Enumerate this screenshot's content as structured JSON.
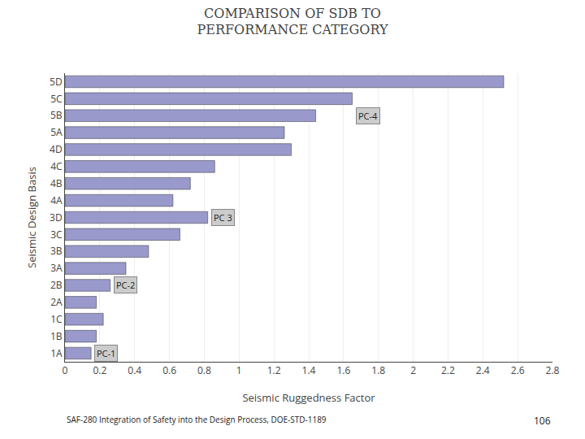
{
  "chart_data": {
    "type": "bar",
    "orientation": "horizontal",
    "title": "COMPARISON OF SDB TO\nPERFORMANCE CATEGORY",
    "x_label": "Seismic Ruggedness Factor",
    "y_label": "Seismic Design Basis",
    "categories": [
      "1A",
      "1B",
      "1C",
      "2A",
      "2B",
      "3A",
      "3B",
      "3C",
      "3D",
      "4A",
      "4B",
      "4C",
      "4D",
      "5A",
      "5B",
      "5C",
      "5D"
    ],
    "values": [
      0.15,
      0.18,
      0.22,
      0.18,
      0.26,
      0.35,
      0.48,
      0.66,
      0.82,
      0.62,
      0.72,
      0.86,
      1.3,
      1.26,
      1.44,
      1.65,
      2.52
    ],
    "color": "#9999cc",
    "xlim": [
      0,
      2.8
    ],
    "xticks": [
      0,
      0.2,
      0.4,
      0.6,
      0.8,
      1,
      1.2,
      1.4,
      1.6,
      1.8,
      2,
      2.2,
      2.4,
      2.6,
      2.8
    ],
    "grid": true,
    "annotations": [
      {
        "text": "PC-1",
        "x": 0.17,
        "category": "1A"
      },
      {
        "text": "PC-2",
        "x": 0.28,
        "category": "2B"
      },
      {
        "text": "PC 3",
        "x": 0.84,
        "category": "3D"
      },
      {
        "text": "PC-4",
        "x": 1.67,
        "category": "5B"
      },
      {
        "text": "SAF-280 Integration of Safety into the Design Process, DOE-STD-1189"
      },
      {
        "text": "106"
      }
    ]
  }
}
